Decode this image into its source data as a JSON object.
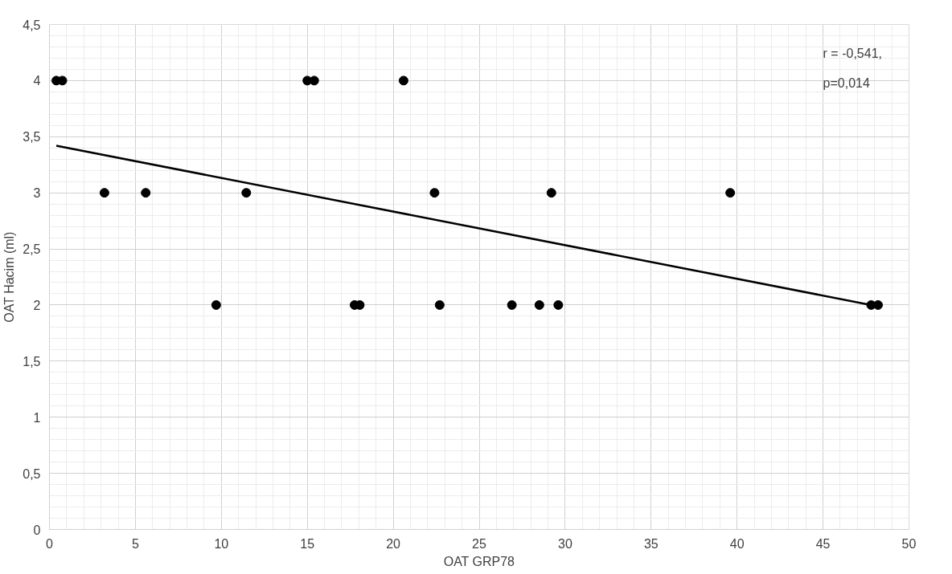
{
  "chart_data": {
    "type": "scatter",
    "xlabel": "OAT GRP78",
    "ylabel": "OAT Hacim (ml)",
    "xlim": [
      0,
      50
    ],
    "xticks": [
      0,
      5,
      10,
      15,
      20,
      25,
      30,
      35,
      40,
      45,
      50
    ],
    "ylim": [
      0,
      4.5
    ],
    "yticks": [
      0,
      {
        "value": 0.5,
        "label": "0,5"
      },
      1,
      {
        "value": 1.5,
        "label": "1,5"
      },
      2,
      {
        "value": 2.5,
        "label": "2,5"
      },
      3,
      {
        "value": 3.5,
        "label": "3,5"
      },
      4,
      {
        "value": 4.5,
        "label": "4,5"
      }
    ],
    "grid": true,
    "annotations": [
      "r = -0,541,",
      "p=0,014"
    ],
    "series": [
      {
        "marker": "circle",
        "color": "#000000",
        "x": [
          0.4,
          0.75,
          15.0,
          15.4,
          20.6,
          3.2,
          5.6,
          11.45,
          22.4,
          29.2,
          39.6,
          9.7,
          17.75,
          18.05,
          22.7,
          26.9,
          28.5,
          29.6,
          47.8,
          48.2
        ],
        "values": [
          4,
          4,
          4,
          4,
          4,
          3,
          3,
          3,
          3,
          3,
          3,
          2,
          2,
          2,
          2,
          2,
          2,
          2,
          2,
          2
        ]
      },
      {
        "type": "line",
        "marker": "none",
        "color": "#000000",
        "x": [
          0.4,
          47.8
        ],
        "values": [
          3.42,
          2.0
        ]
      }
    ]
  }
}
